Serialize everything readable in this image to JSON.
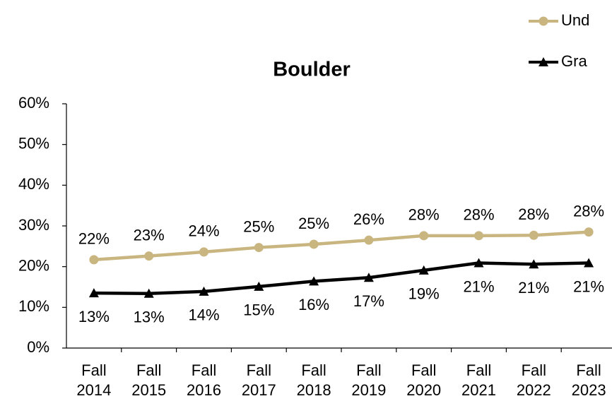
{
  "chart_data": {
    "type": "line",
    "title": "Boulder",
    "categories": [
      "Fall 2014",
      "Fall 2015",
      "Fall 2016",
      "Fall 2017",
      "Fall 2018",
      "Fall 2019",
      "Fall 2020",
      "Fall 2021",
      "Fall 2022",
      "Fall 2023"
    ],
    "series": [
      {
        "name": "Und",
        "color": "#c9b57f",
        "marker": "circle",
        "values": [
          21.7,
          22.6,
          23.6,
          24.7,
          25.5,
          26.5,
          27.6,
          27.6,
          27.7,
          28.5
        ],
        "value_labels": [
          "22%",
          "23%",
          "24%",
          "25%",
          "25%",
          "26%",
          "28%",
          "28%",
          "28%",
          "28%"
        ]
      },
      {
        "name": "Gra",
        "color": "#000000",
        "marker": "triangle",
        "values": [
          13.5,
          13.4,
          13.9,
          15.1,
          16.4,
          17.3,
          19.1,
          20.9,
          20.6,
          20.9
        ],
        "value_labels": [
          "13%",
          "13%",
          "14%",
          "15%",
          "16%",
          "17%",
          "19%",
          "21%",
          "21%",
          "21%"
        ]
      }
    ],
    "ylim": [
      0,
      60
    ],
    "yticks": [
      {
        "value": 0,
        "label": "0%"
      },
      {
        "value": 10,
        "label": "10%"
      },
      {
        "value": 20,
        "label": "20%"
      },
      {
        "value": 30,
        "label": "30%"
      },
      {
        "value": 40,
        "label": "40%"
      },
      {
        "value": 50,
        "label": "50%"
      },
      {
        "value": 60,
        "label": "60%"
      }
    ],
    "grid": false,
    "legend": "top right"
  }
}
